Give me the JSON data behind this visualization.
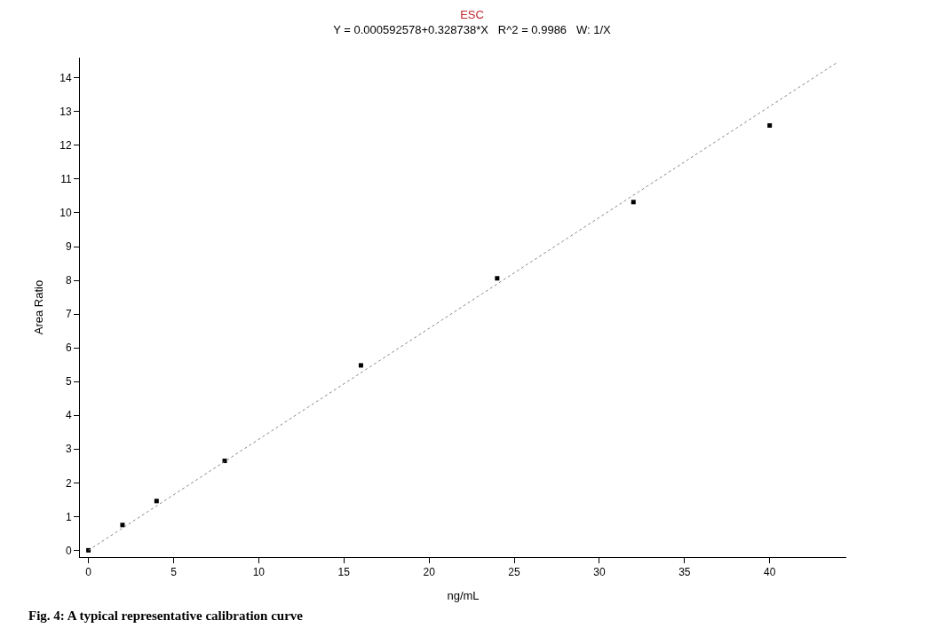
{
  "chart_data": {
    "type": "scatter",
    "title": "ESC",
    "subtitle": "Y = 0.000592578+0.328738*X   R^2 = 0.9986   W: 1/X",
    "xlabel": "ng/mL",
    "ylabel": "Area Ratio",
    "x": [
      0,
      2,
      4,
      8,
      16,
      24,
      32,
      40
    ],
    "series": [
      {
        "color": "#000000",
        "values": [
          0.0,
          0.75,
          1.46,
          2.65,
          5.48,
          8.06,
          10.32,
          12.59
        ],
        "marker": "square"
      },
      {
        "type": "line",
        "color": "#888888",
        "line_style": "dotted",
        "marker": "none",
        "x": [
          0,
          44
        ],
        "values": [
          0.0,
          14.47
        ]
      }
    ],
    "xlim": [
      -0.5,
      44.5
    ],
    "ylim": [
      -0.2,
      14.6
    ],
    "xticks": [
      0,
      5,
      10,
      15,
      20,
      25,
      30,
      35,
      40
    ],
    "yticks": [
      0,
      1,
      2,
      3,
      4,
      5,
      6,
      7,
      8,
      9,
      10,
      11,
      12,
      13,
      14
    ],
    "annotations": [
      "Fig. 4: A typical representative calibration curve"
    ]
  }
}
